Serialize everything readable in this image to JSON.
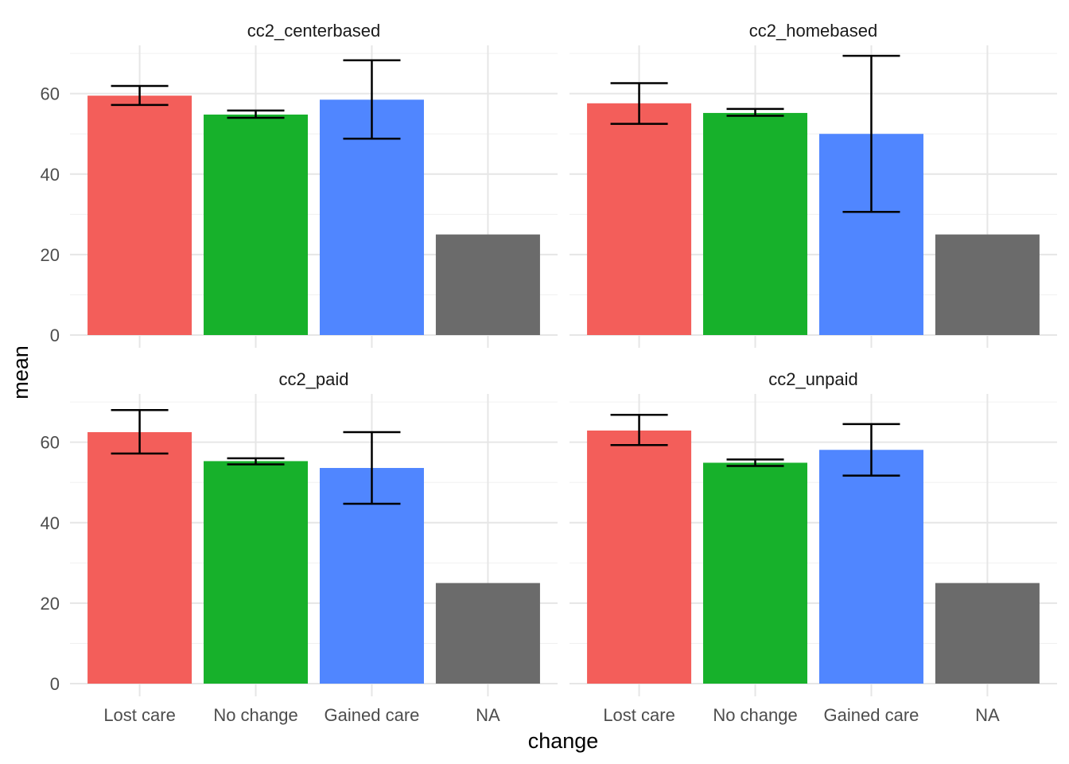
{
  "chart_data": {
    "type": "bar",
    "layout": "facet-grid 2x2",
    "xlabel": "change",
    "ylabel": "mean",
    "categories": [
      "Lost care",
      "No change",
      "Gained care",
      "NA"
    ],
    "colors": [
      "#F35E5A",
      "#17B12B",
      "#5086FF",
      "#6B6B6B"
    ],
    "ylim": [
      0,
      72
    ],
    "yticks": [
      0,
      20,
      40,
      60
    ],
    "error_bar_color": "#000000",
    "panels": [
      {
        "title": "cc2_centerbased",
        "values": [
          59.5,
          54.8,
          58.5,
          25.0
        ],
        "errors": [
          [
            57.2,
            61.9
          ],
          [
            54.0,
            55.8
          ],
          [
            48.8,
            68.3
          ],
          null
        ]
      },
      {
        "title": "cc2_homebased",
        "values": [
          57.6,
          55.2,
          50.0,
          25.0
        ],
        "errors": [
          [
            52.5,
            62.6
          ],
          [
            54.5,
            56.2
          ],
          [
            30.6,
            69.4
          ],
          null
        ]
      },
      {
        "title": "cc2_paid",
        "values": [
          62.5,
          55.3,
          53.6,
          25.0
        ],
        "errors": [
          [
            57.2,
            68.0
          ],
          [
            54.5,
            56.0
          ],
          [
            44.7,
            62.5
          ],
          null
        ]
      },
      {
        "title": "cc2_unpaid",
        "values": [
          62.9,
          54.9,
          58.1,
          25.0
        ],
        "errors": [
          [
            59.3,
            66.8
          ],
          [
            54.1,
            55.7
          ],
          [
            51.7,
            64.5
          ],
          null
        ]
      }
    ]
  }
}
